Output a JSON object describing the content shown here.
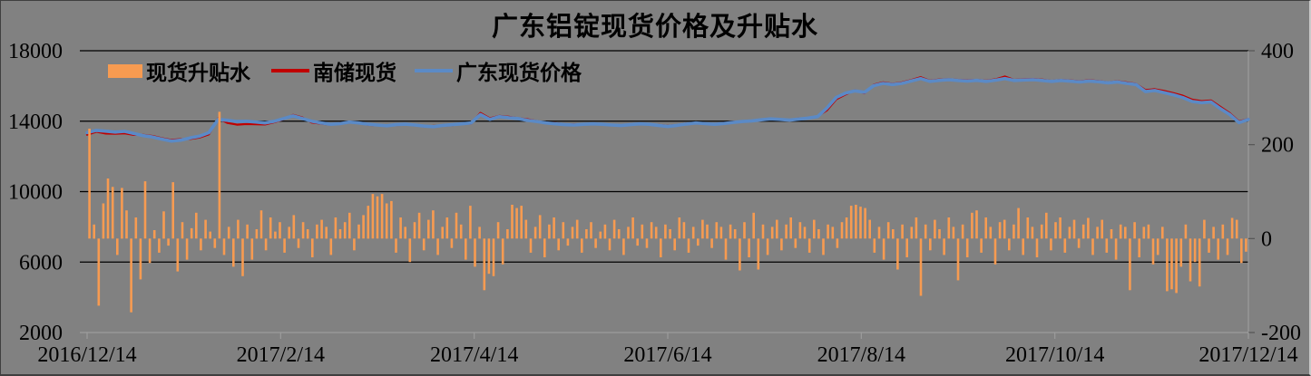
{
  "title": "广东铝锭现货价格及升贴水",
  "legend": [
    {
      "label": "现货升贴水",
      "swatch": "bar",
      "color": "#F79B51"
    },
    {
      "label": "南储现货",
      "swatch": "line",
      "color": "#C00000"
    },
    {
      "label": "广东现货价格",
      "swatch": "line",
      "color": "#5B8AC6"
    }
  ],
  "colors": {
    "background": "#818181",
    "gridline": "#000000",
    "axis_line": "#9C9C9C",
    "tick": "#555555",
    "text": "#000000",
    "bar": "#F79B51",
    "red_line": "#C00000",
    "blue_line": "#5B8AC6"
  },
  "chart_data": {
    "type": "combo-bar-line",
    "title": "广东铝锭现货价格及升贴水",
    "x_ticks": [
      "2016/12/14",
      "2017/2/14",
      "2017/4/14",
      "2017/6/14",
      "2017/8/14",
      "2017/10/14",
      "2017/12/14"
    ],
    "left_axis": {
      "min": 2000,
      "max": 18000,
      "ticks": [
        18000,
        14000,
        10000,
        6000,
        2000
      ]
    },
    "right_axis": {
      "min": -200,
      "max": 400,
      "ticks": [
        400,
        200,
        0,
        -200
      ]
    },
    "grid": true,
    "legend_position": "top-left-inside",
    "series": [
      {
        "name": "现货升贴水",
        "type": "bar",
        "axis": "right",
        "color": "#F79B51",
        "values": [
          234,
          30,
          -143,
          75,
          128,
          110,
          -35,
          108,
          60,
          -157,
          45,
          -87,
          122,
          -52,
          18,
          -30,
          58,
          -15,
          120,
          -70,
          35,
          -45,
          22,
          55,
          -25,
          40,
          15,
          -20,
          270,
          -35,
          25,
          -60,
          40,
          -80,
          30,
          -45,
          20,
          60,
          -25,
          45,
          15,
          35,
          -30,
          25,
          50,
          -20,
          35,
          20,
          -40,
          30,
          40,
          25,
          -35,
          45,
          20,
          35,
          55,
          -25,
          30,
          50,
          70,
          95,
          90,
          95,
          75,
          80,
          -30,
          45,
          25,
          -50,
          35,
          55,
          -25,
          40,
          60,
          -35,
          25,
          45,
          -20,
          55,
          30,
          -45,
          70,
          -60,
          25,
          -110,
          -75,
          -80,
          35,
          -55,
          20,
          72,
          65,
          70,
          40,
          -30,
          25,
          50,
          -40,
          30,
          45,
          -25,
          35,
          -15,
          25,
          40,
          -30,
          20,
          35,
          -20,
          15,
          30,
          -25,
          40,
          20,
          -35,
          25,
          45,
          -15,
          30,
          -20,
          35,
          25,
          -40,
          30,
          20,
          -25,
          45,
          35,
          -30,
          25,
          -15,
          40,
          30,
          -20,
          35,
          25,
          -45,
          30,
          20,
          -68,
          35,
          -40,
          55,
          -66,
          30,
          -35,
          25,
          40,
          -25,
          30,
          45,
          -20,
          35,
          25,
          -30,
          40,
          20,
          -35,
          30,
          25,
          -20,
          35,
          45,
          70,
          72,
          68,
          65,
          40,
          -30,
          25,
          -45,
          35,
          20,
          -66,
          30,
          -40,
          25,
          45,
          -122,
          30,
          -25,
          40,
          20,
          -35,
          45,
          25,
          -89,
          30,
          -40,
          55,
          60,
          -30,
          45,
          25,
          -55,
          35,
          40,
          -25,
          30,
          65,
          -35,
          45,
          25,
          -40,
          30,
          55,
          -25,
          35,
          45,
          -30,
          25,
          40,
          -20,
          30,
          44,
          -35,
          25,
          40,
          -30,
          20,
          -45,
          30,
          25,
          -110,
          35,
          -40,
          25,
          30,
          -55,
          -35,
          25,
          -112,
          -108,
          -116,
          -60,
          30,
          -91,
          -50,
          -102,
          40,
          -30,
          25,
          -45,
          30,
          -35,
          44,
          40,
          -52,
          -28
        ]
      },
      {
        "name": "南储现货",
        "type": "line",
        "axis": "left",
        "color": "#C00000",
        "stroke_width": 2.2,
        "values": [
          13230,
          13400,
          13300,
          13290,
          13310,
          13220,
          13220,
          13160,
          13030,
          12940,
          12980,
          12990,
          13070,
          13250,
          14150,
          13900,
          13800,
          13840,
          13830,
          13810,
          13940,
          14110,
          14360,
          14210,
          13920,
          13860,
          13800,
          13890,
          13920,
          13920,
          13790,
          13760,
          13770,
          13780,
          13790,
          13800,
          13690,
          13730,
          13740,
          13770,
          13870,
          13860,
          14470,
          14160,
          14300,
          14250,
          14180,
          14110,
          14010,
          13920,
          13890,
          13820,
          13810,
          13800,
          13870,
          13850,
          13760,
          13770,
          13830,
          13870,
          13800,
          13790,
          13740,
          13780,
          13870,
          13880,
          13880,
          13850,
          13890,
          13960,
          14000,
          14000,
          14100,
          14100,
          14120,
          14040,
          14150,
          14160,
          14280,
          14620,
          15250,
          15520,
          15760,
          15580,
          16070,
          16210,
          16120,
          16200,
          16340,
          16500,
          16300,
          16370,
          16390,
          16350,
          16330,
          16350,
          16300,
          16380,
          16540,
          16350,
          16390,
          16400,
          16360,
          16290,
          16350,
          16320,
          16270,
          16330,
          16280,
          16210,
          16270,
          16200,
          16120,
          15770,
          15820,
          15720,
          15590,
          15450,
          15220,
          15140,
          15180,
          14820,
          14460,
          13980,
          14130
        ]
      },
      {
        "name": "广东现货价格",
        "type": "line",
        "axis": "left",
        "color": "#5B8AC6",
        "stroke_width": 3.6,
        "values": [
          13350,
          13480,
          13430,
          13380,
          13420,
          13300,
          13180,
          13100,
          12980,
          12870,
          12920,
          13050,
          13150,
          13350,
          14100,
          14050,
          13980,
          14000,
          13950,
          13900,
          14000,
          14150,
          14300,
          14150,
          14000,
          13900,
          13820,
          13860,
          13950,
          13900,
          13830,
          13780,
          13740,
          13800,
          13830,
          13780,
          13720,
          13690,
          13760,
          13800,
          13850,
          13900,
          14380,
          14100,
          14260,
          14200,
          14150,
          14050,
          13980,
          13900,
          13850,
          13800,
          13780,
          13820,
          13850,
          13820,
          13780,
          13750,
          13800,
          13850,
          13820,
          13760,
          13700,
          13760,
          13840,
          13900,
          13860,
          13820,
          13870,
          13930,
          13980,
          14020,
          14080,
          14130,
          14100,
          14060,
          14120,
          14180,
          14260,
          14750,
          15350,
          15600,
          15720,
          15640,
          16020,
          16150,
          16080,
          16150,
          16280,
          16420,
          16260,
          16320,
          16360,
          16310,
          16280,
          16320,
          16260,
          16330,
          16420,
          16310,
          16340,
          16360,
          16310,
          16260,
          16310,
          16270,
          16230,
          16280,
          16240,
          16180,
          16230,
          16150,
          16080,
          15680,
          15740,
          15620,
          15500,
          15340,
          15120,
          15050,
          15100,
          14720,
          14380,
          13920,
          14100
        ]
      }
    ]
  }
}
